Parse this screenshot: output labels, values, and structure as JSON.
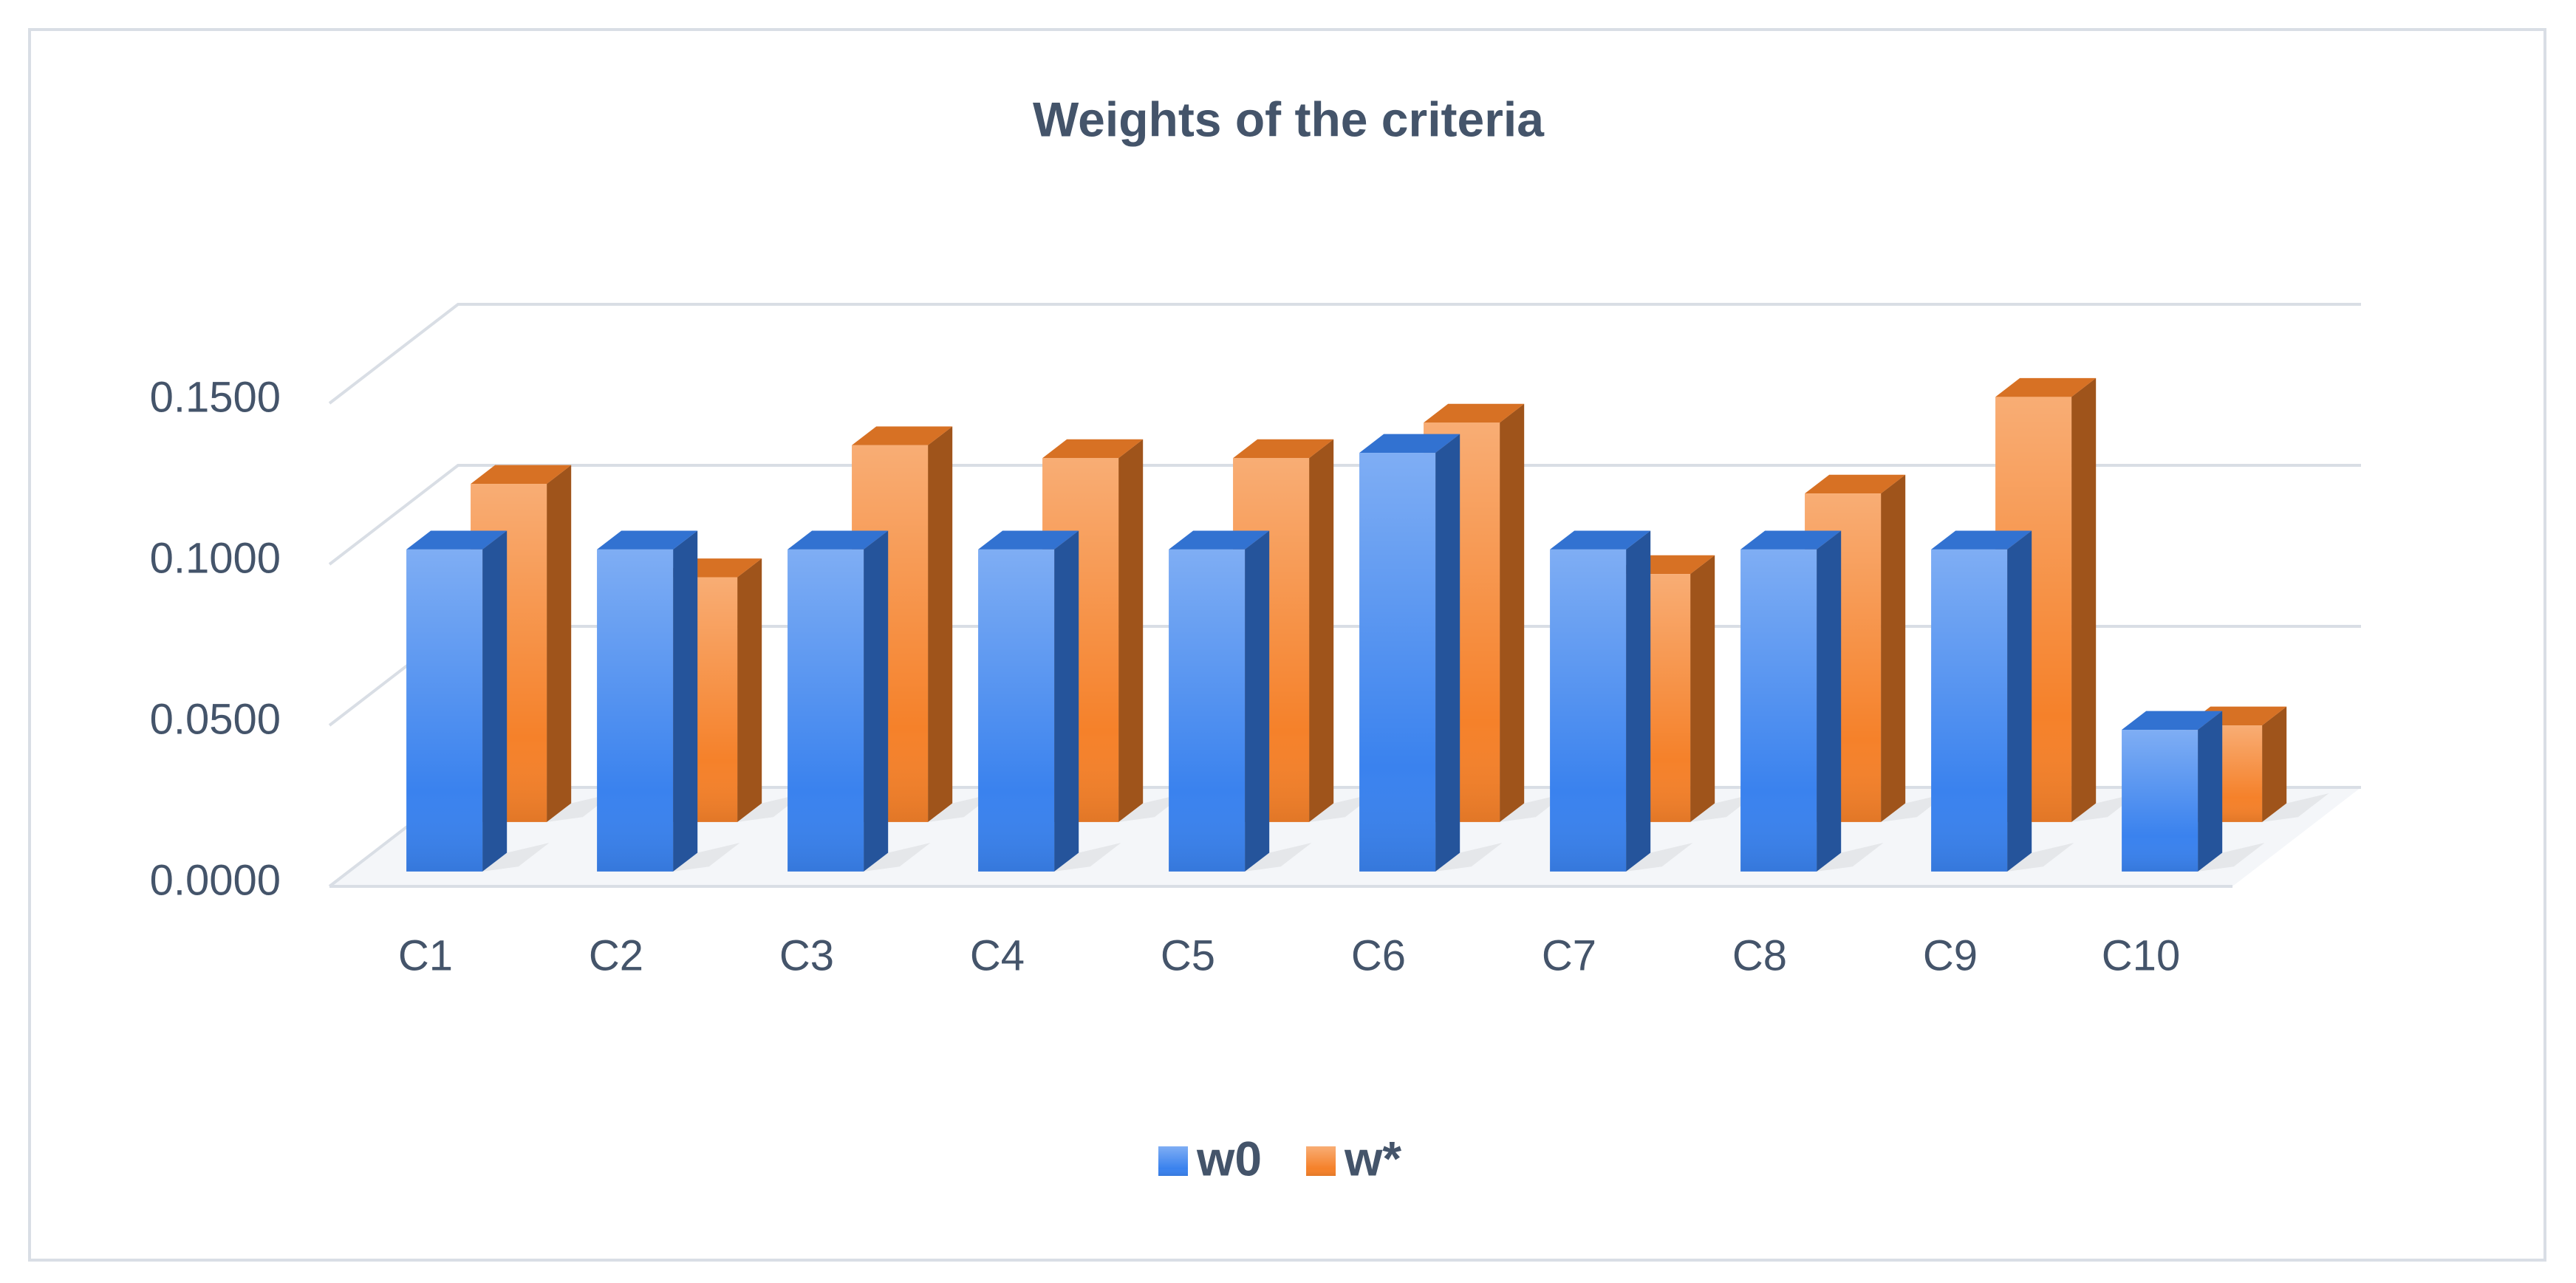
{
  "chart_data": {
    "type": "bar3d",
    "title": "Weights of the criteria",
    "categories": [
      "C1",
      "C2",
      "C3",
      "C4",
      "C5",
      "C6",
      "C7",
      "C8",
      "C9",
      "C10"
    ],
    "series": [
      {
        "name": "w0",
        "color": "#3a82ee",
        "values": [
          0.1,
          0.1,
          0.1,
          0.1,
          0.1,
          0.13,
          0.1,
          0.1,
          0.1,
          0.044
        ]
      },
      {
        "name": "w*",
        "color": "#f5812a",
        "values": [
          0.105,
          0.076,
          0.117,
          0.113,
          0.113,
          0.124,
          0.077,
          0.102,
          0.132,
          0.03
        ]
      }
    ],
    "ylim": [
      0,
      0.15
    ],
    "yticks": [
      {
        "value": 0,
        "label": "0.0000"
      },
      {
        "value": 0.05,
        "label": "0.0500"
      },
      {
        "value": 0.1,
        "label": "0.1000"
      },
      {
        "value": 0.15,
        "label": "0.1500"
      }
    ],
    "grid": true,
    "legend": "bottom"
  }
}
